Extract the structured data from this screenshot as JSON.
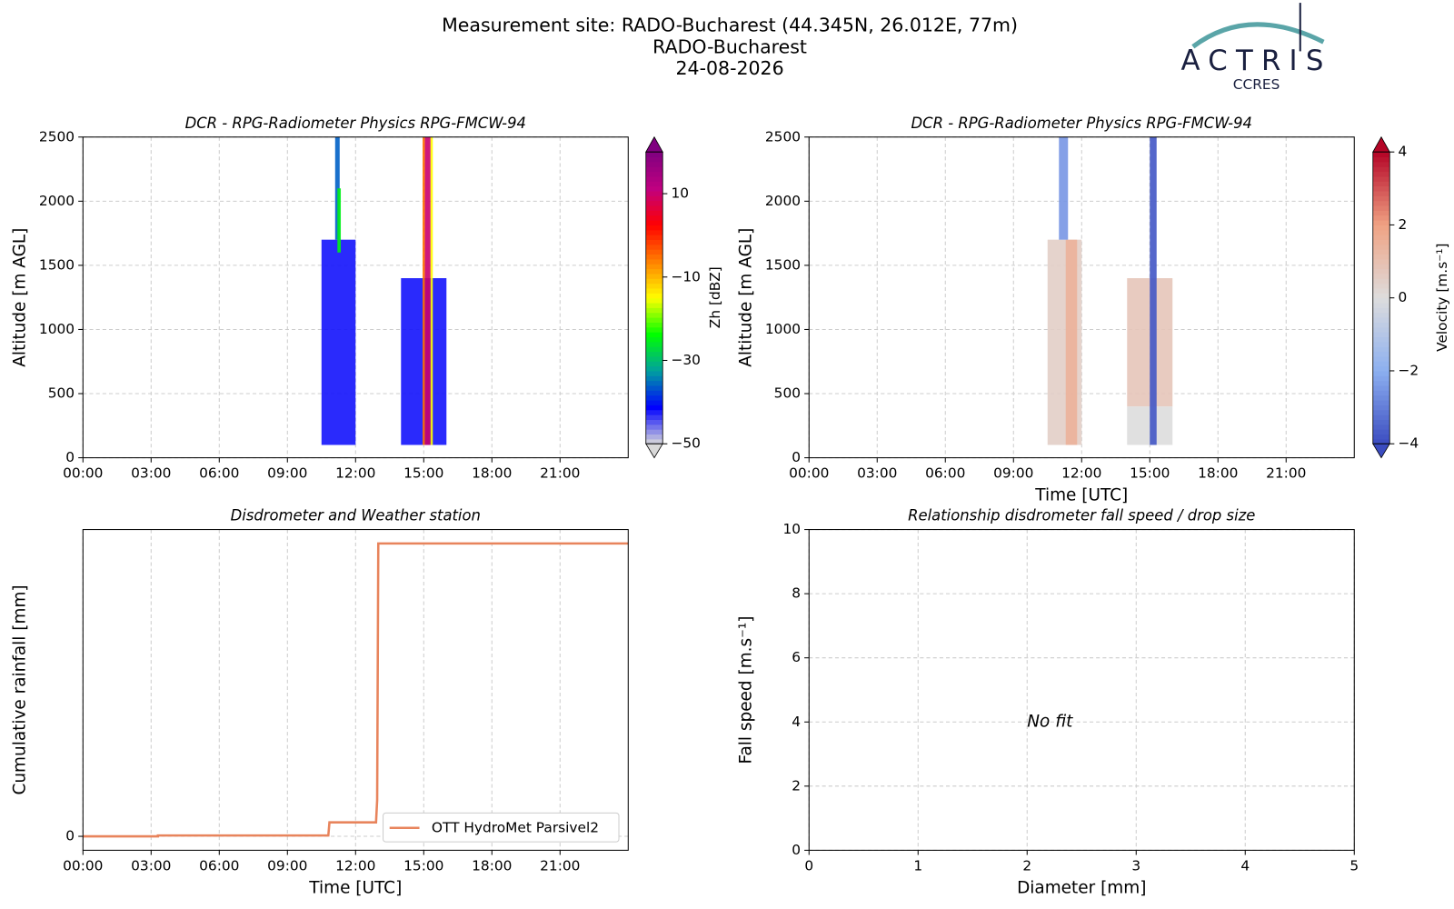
{
  "header": {
    "title": "Measurement site: RADO-Bucharest (44.345N, 26.012E, 77m)",
    "site": "RADO-Bucharest",
    "date": "24-08-2026",
    "logo": "ACTRIS",
    "logo_subtitle": "CCRES"
  },
  "chart_data": [
    {
      "type": "heatmap",
      "title": "DCR - RPG-Radiometer Physics RPG-FMCW-94",
      "ylabel": "Altitude [m AGL]",
      "xlim": [
        0,
        24
      ],
      "xticks": [
        {
          "value": 0,
          "label": "00:00"
        },
        {
          "value": 3,
          "label": "03:00"
        },
        {
          "value": 6,
          "label": "06:00"
        },
        {
          "value": 9,
          "label": "09:00"
        },
        {
          "value": 12,
          "label": "12:00"
        },
        {
          "value": 15,
          "label": "15:00"
        },
        {
          "value": 18,
          "label": "18:00"
        },
        {
          "value": 21,
          "label": "21:00"
        }
      ],
      "ylim": [
        0,
        2500
      ],
      "yticks": [
        0,
        500,
        1000,
        1500,
        2000,
        2500
      ],
      "grid": true,
      "colorbar_label": "Zh [dBZ]",
      "clim": [
        -50,
        20
      ],
      "cticks": [
        {
          "value": -50,
          "label": "−50"
        },
        {
          "value": -30,
          "label": "−30"
        },
        {
          "value": -10,
          "label": "−10"
        },
        {
          "value": 10,
          "label": "10"
        }
      ],
      "colors": [
        "#d9d9d9",
        "#0000ff",
        "#00a0a0",
        "#00ff00",
        "#ffff00",
        "#ff8000",
        "#ff0000",
        "#c00080",
        "#800080"
      ],
      "cells": [
        {
          "t0": 10.5,
          "t1": 12.0,
          "z0": 100,
          "z1": 1700,
          "value": -42
        },
        {
          "t0": 11.1,
          "t1": 11.3,
          "z0": 1700,
          "z1": 2500,
          "value": -36
        },
        {
          "t0": 11.2,
          "t1": 11.35,
          "z0": 1600,
          "z1": 2100,
          "value": -25
        },
        {
          "t0": 14.0,
          "t1": 16.0,
          "z0": 100,
          "z1": 1400,
          "value": -42
        },
        {
          "t0": 14.95,
          "t1": 15.05,
          "z0": 100,
          "z1": 2500,
          "value": -5
        },
        {
          "t0": 15.05,
          "t1": 15.3,
          "z0": 100,
          "z1": 2500,
          "value": 10
        },
        {
          "t0": 15.3,
          "t1": 15.4,
          "z0": 100,
          "z1": 2500,
          "value": -15
        }
      ]
    },
    {
      "type": "heatmap",
      "title": "DCR - RPG-Radiometer Physics RPG-FMCW-94",
      "xlabel": "Time [UTC]",
      "ylabel": "Altitude [m AGL]",
      "xlim": [
        0,
        24
      ],
      "xticks": [
        {
          "value": 0,
          "label": "00:00"
        },
        {
          "value": 3,
          "label": "03:00"
        },
        {
          "value": 6,
          "label": "06:00"
        },
        {
          "value": 9,
          "label": "09:00"
        },
        {
          "value": 12,
          "label": "12:00"
        },
        {
          "value": 15,
          "label": "15:00"
        },
        {
          "value": 18,
          "label": "18:00"
        },
        {
          "value": 21,
          "label": "21:00"
        }
      ],
      "ylim": [
        0,
        2500
      ],
      "yticks": [
        0,
        500,
        1000,
        1500,
        2000,
        2500
      ],
      "grid": true,
      "colorbar_label": "Velocity [m.s⁻¹]",
      "clim": [
        -4,
        4
      ],
      "cticks": [
        {
          "value": -4,
          "label": "−4"
        },
        {
          "value": -2,
          "label": "−2"
        },
        0,
        2,
        4
      ],
      "colors": [
        "#3b4cc0",
        "#8caff0",
        "#dddddd",
        "#f0a283",
        "#b40426"
      ],
      "cells": [
        {
          "t0": 10.5,
          "t1": 12.0,
          "z0": 100,
          "z1": 1700,
          "value": 0.5
        },
        {
          "t0": 11.3,
          "t1": 11.8,
          "z0": 100,
          "z1": 1700,
          "value": 1.5
        },
        {
          "t0": 11.0,
          "t1": 11.4,
          "z0": 1700,
          "z1": 2500,
          "value": -2.5
        },
        {
          "t0": 14.0,
          "t1": 16.0,
          "z0": 400,
          "z1": 1400,
          "value": 0.8
        },
        {
          "t0": 14.0,
          "t1": 16.0,
          "z0": 100,
          "z1": 400,
          "value": 0
        },
        {
          "t0": 15.0,
          "t1": 15.3,
          "z0": 100,
          "z1": 2500,
          "value": -3.8
        }
      ]
    },
    {
      "type": "line",
      "title": "Disdrometer and Weather station",
      "xlabel": "Time [UTC]",
      "ylabel": "Cumulative rainfall [mm]",
      "xlim": [
        0,
        24
      ],
      "xticks": [
        {
          "value": 0,
          "label": "00:00"
        },
        {
          "value": 3,
          "label": "03:00"
        },
        {
          "value": 6,
          "label": "06:00"
        },
        {
          "value": 9,
          "label": "09:00"
        },
        {
          "value": 12,
          "label": "12:00"
        },
        {
          "value": 15,
          "label": "15:00"
        },
        {
          "value": 18,
          "label": "18:00"
        },
        {
          "value": 21,
          "label": "21:00"
        }
      ],
      "ylim": [
        -0.5,
        11
      ],
      "yticks": [
        0
      ],
      "grid": true,
      "legend": "lower right",
      "x": [
        0,
        3.3,
        3.3,
        10.8,
        10.85,
        12.9,
        12.95,
        13.0,
        24
      ],
      "series": [
        {
          "name": "OTT HydroMet Parsivel2",
          "color": "#e8845c",
          "values": [
            0,
            0,
            0.03,
            0.03,
            0.5,
            0.5,
            1.3,
            10.5,
            10.5
          ]
        }
      ]
    },
    {
      "type": "scatter",
      "title": "Relationship disdrometer fall speed / drop size",
      "xlabel": "Diameter [mm]",
      "ylabel": "Fall speed [m.s⁻¹]",
      "xlim": [
        0,
        5
      ],
      "xticks": [
        0,
        1,
        2,
        3,
        4,
        5
      ],
      "ylim": [
        0,
        10
      ],
      "yticks": [
        0,
        2,
        4,
        6,
        8,
        10
      ],
      "grid": true,
      "annotation": "No fit"
    }
  ]
}
